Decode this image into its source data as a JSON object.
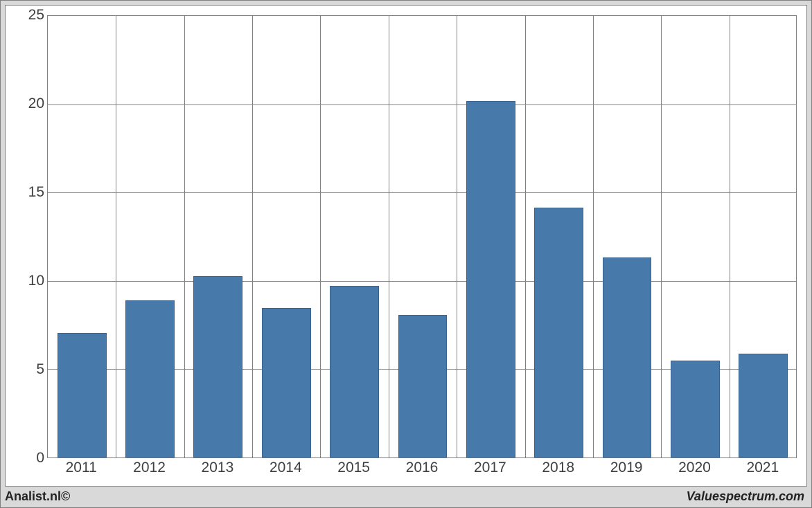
{
  "chart": {
    "type": "bar",
    "categories": [
      "2011",
      "2012",
      "2013",
      "2014",
      "2015",
      "2016",
      "2017",
      "2018",
      "2019",
      "2020",
      "2021"
    ],
    "values": [
      7.05,
      8.85,
      10.25,
      8.45,
      9.7,
      8.05,
      20.1,
      14.1,
      11.3,
      5.45,
      5.85
    ],
    "bar_color": "#4779ab",
    "bar_border_color": "#39638f",
    "ylim": [
      0,
      25
    ],
    "ytick_step": 5,
    "yticks": [
      0,
      5,
      10,
      15,
      20,
      25
    ],
    "background_color": "#ffffff",
    "outer_background_color": "#d9d9d9",
    "grid_color": "#808080",
    "axis_color": "#808080",
    "bar_width_ratio": 0.72,
    "label_fontsize": 21,
    "label_color": "#404040"
  },
  "footer": {
    "left": "Analist.nl©",
    "right": "Valuespectrum.com"
  }
}
